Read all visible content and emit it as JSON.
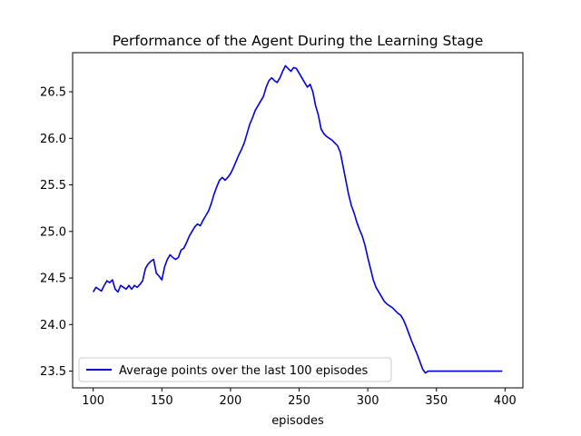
{
  "chart_data": {
    "type": "line",
    "title": "Performance of the Agent During the Learning Stage",
    "xlabel": "episodes",
    "ylabel": "",
    "xlim": [
      85,
      413
    ],
    "ylim": [
      23.32,
      26.92
    ],
    "xticks": [
      100,
      150,
      200,
      250,
      300,
      350,
      400
    ],
    "yticks": [
      23.5,
      24.0,
      24.5,
      25.0,
      25.5,
      26.0,
      26.5
    ],
    "legend_position": "lower-left",
    "colors": {
      "line": "#0000dd"
    },
    "series": [
      {
        "name": "Average points over the last 100 episodes",
        "x": [
          100,
          102,
          104,
          106,
          108,
          110,
          112,
          114,
          116,
          118,
          120,
          122,
          124,
          126,
          128,
          130,
          132,
          134,
          136,
          138,
          140,
          142,
          144,
          146,
          148,
          150,
          152,
          154,
          156,
          158,
          160,
          162,
          164,
          166,
          168,
          170,
          172,
          174,
          176,
          178,
          180,
          182,
          184,
          186,
          188,
          190,
          192,
          194,
          196,
          198,
          200,
          202,
          204,
          206,
          208,
          210,
          212,
          214,
          216,
          218,
          220,
          222,
          224,
          226,
          228,
          230,
          232,
          234,
          236,
          238,
          240,
          242,
          244,
          246,
          248,
          250,
          252,
          254,
          256,
          258,
          260,
          262,
          264,
          266,
          268,
          270,
          272,
          274,
          276,
          278,
          280,
          282,
          284,
          286,
          288,
          290,
          292,
          294,
          296,
          298,
          300,
          302,
          304,
          306,
          308,
          310,
          312,
          314,
          316,
          318,
          320,
          322,
          324,
          326,
          328,
          330,
          332,
          334,
          336,
          338,
          340,
          342,
          344,
          346,
          348,
          350,
          352,
          354,
          356,
          358,
          360,
          362,
          364,
          366,
          368,
          370,
          372,
          374,
          376,
          378,
          380,
          382,
          384,
          386,
          388,
          390,
          392,
          394,
          396,
          398
        ],
        "values": [
          24.35,
          24.4,
          24.38,
          24.36,
          24.42,
          24.47,
          24.45,
          24.48,
          24.38,
          24.35,
          24.42,
          24.4,
          24.38,
          24.42,
          24.38,
          24.42,
          24.4,
          24.43,
          24.47,
          24.6,
          24.65,
          24.68,
          24.7,
          24.55,
          24.52,
          24.48,
          24.62,
          24.7,
          24.75,
          24.72,
          24.7,
          24.72,
          24.8,
          24.82,
          24.88,
          24.95,
          25.0,
          25.05,
          25.08,
          25.06,
          25.12,
          25.17,
          25.22,
          25.3,
          25.4,
          25.48,
          25.55,
          25.58,
          25.55,
          25.58,
          25.62,
          25.68,
          25.75,
          25.82,
          25.88,
          25.95,
          26.05,
          26.15,
          26.22,
          26.3,
          26.35,
          26.4,
          26.45,
          26.55,
          26.62,
          26.65,
          26.62,
          26.6,
          26.65,
          26.72,
          26.78,
          26.75,
          26.72,
          26.76,
          26.75,
          26.7,
          26.65,
          26.6,
          26.55,
          26.58,
          26.5,
          26.35,
          26.25,
          26.1,
          26.05,
          26.02,
          26.0,
          25.98,
          25.95,
          25.92,
          25.85,
          25.7,
          25.55,
          25.4,
          25.28,
          25.2,
          25.1,
          25.02,
          24.95,
          24.85,
          24.72,
          24.6,
          24.48,
          24.4,
          24.35,
          24.3,
          24.25,
          24.22,
          24.2,
          24.18,
          24.15,
          24.12,
          24.1,
          24.05,
          23.98,
          23.9,
          23.82,
          23.75,
          23.68,
          23.6,
          23.52,
          23.48,
          23.5,
          23.5,
          23.5,
          23.5,
          23.5,
          23.5,
          23.5,
          23.5,
          23.5,
          23.5,
          23.5,
          23.5,
          23.5,
          23.5,
          23.5,
          23.5,
          23.5,
          23.5,
          23.5,
          23.5,
          23.5,
          23.5,
          23.5,
          23.5,
          23.5,
          23.5,
          23.5,
          23.5
        ]
      }
    ]
  }
}
